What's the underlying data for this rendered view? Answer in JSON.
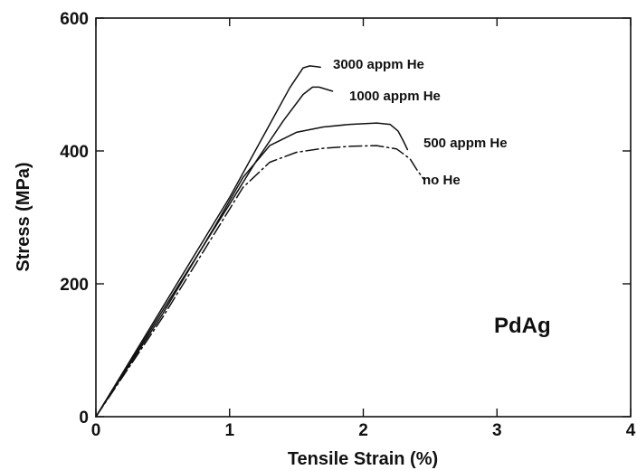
{
  "chart_data": {
    "type": "line",
    "title": "",
    "xlabel": "Tensile Strain (%)",
    "ylabel": "Stress (MPa)",
    "xlim": [
      0,
      4
    ],
    "ylim": [
      0,
      600
    ],
    "xticks": [
      0,
      1,
      2,
      3,
      4
    ],
    "yticks": [
      0,
      200,
      400,
      600
    ],
    "xtick_labels": [
      "0",
      "1",
      "2",
      "3",
      "4"
    ],
    "ytick_labels": [
      "0",
      "200",
      "400",
      "600"
    ],
    "grid": false,
    "legend": "none",
    "annotations": [
      "PdAg"
    ],
    "series": [
      {
        "name": "3000 appm He",
        "dash": "solid",
        "x": [
          0,
          0.5,
          1.0,
          1.3,
          1.45,
          1.55,
          1.6,
          1.65,
          1.68
        ],
        "y": [
          0,
          165,
          330,
          440,
          495,
          525,
          528,
          527,
          526
        ]
      },
      {
        "name": "1000 appm He",
        "dash": "solid",
        "x": [
          0,
          0.5,
          1.0,
          1.2,
          1.4,
          1.55,
          1.62,
          1.67,
          1.72,
          1.77
        ],
        "y": [
          0,
          160,
          320,
          385,
          445,
          485,
          496,
          496,
          493,
          490
        ]
      },
      {
        "name": "500 appm He",
        "dash": "solid",
        "x": [
          0,
          0.5,
          0.9,
          1.1,
          1.3,
          1.5,
          1.7,
          1.9,
          2.1,
          2.2,
          2.26,
          2.3,
          2.33
        ],
        "y": [
          0,
          155,
          290,
          360,
          408,
          428,
          436,
          440,
          442,
          440,
          430,
          415,
          402
        ]
      },
      {
        "name": "no He",
        "dash": "dashdot",
        "x": [
          0,
          0.5,
          0.9,
          1.1,
          1.3,
          1.5,
          1.7,
          1.9,
          2.1,
          2.25,
          2.35,
          2.4,
          2.45
        ],
        "y": [
          0,
          150,
          280,
          345,
          383,
          398,
          404,
          407,
          408,
          403,
          388,
          372,
          358
        ]
      }
    ]
  }
}
